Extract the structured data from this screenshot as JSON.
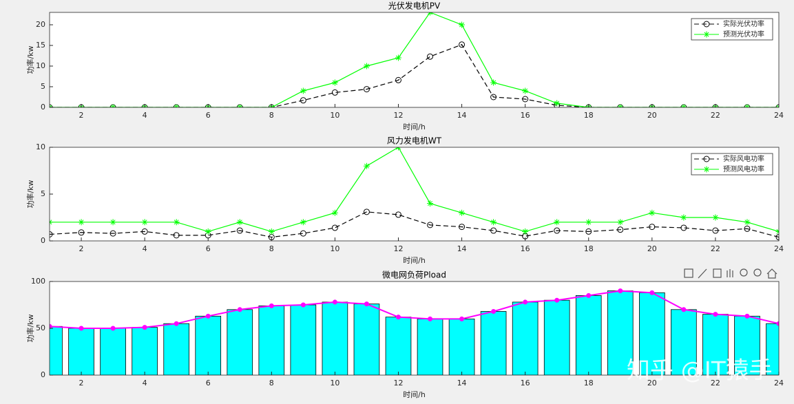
{
  "chart_data": [
    {
      "type": "line",
      "title": "光伏发电机PV",
      "xlabel": "时间/h",
      "ylabel": "功率/kw",
      "x": [
        1,
        2,
        3,
        4,
        5,
        6,
        7,
        8,
        9,
        10,
        11,
        12,
        13,
        14,
        15,
        16,
        17,
        18,
        19,
        20,
        21,
        22,
        23,
        24
      ],
      "series": [
        {
          "name": "实际光伏功率",
          "color": "#000000",
          "linestyle": "dashed",
          "marker": "o",
          "values": [
            0,
            0,
            0,
            0,
            0,
            0,
            0,
            0,
            1.7,
            3.6,
            4.4,
            6.6,
            12.3,
            15.2,
            2.5,
            2,
            0.5,
            0,
            0,
            0,
            0,
            0,
            0,
            0
          ]
        },
        {
          "name": "预测光伏功率",
          "color": "#00ff00",
          "linestyle": "solid",
          "marker": "*",
          "values": [
            0,
            0,
            0,
            0,
            0,
            0,
            0,
            0,
            4,
            6,
            10,
            12,
            23,
            20,
            6,
            4,
            1,
            0,
            0,
            0,
            0,
            0,
            0,
            0
          ]
        }
      ],
      "xlim": [
        1,
        24
      ],
      "xticks": [
        2,
        4,
        6,
        8,
        10,
        12,
        14,
        16,
        18,
        20,
        22,
        24
      ],
      "ylim": [
        0,
        23
      ],
      "yticks": [
        0,
        5,
        10,
        15,
        20
      ],
      "legend": "northeast"
    },
    {
      "type": "line",
      "title": "风力发电机WT",
      "xlabel": "时间/h",
      "ylabel": "功率/kw",
      "x": [
        1,
        2,
        3,
        4,
        5,
        6,
        7,
        8,
        9,
        10,
        11,
        12,
        13,
        14,
        15,
        16,
        17,
        18,
        19,
        20,
        21,
        22,
        23,
        24
      ],
      "series": [
        {
          "name": "实际风电功率",
          "color": "#000000",
          "linestyle": "dashed",
          "marker": "o",
          "values": [
            0.7,
            0.9,
            0.8,
            1.0,
            0.6,
            0.6,
            1.1,
            0.4,
            0.8,
            1.4,
            3.1,
            2.8,
            1.7,
            1.5,
            1.1,
            0.5,
            1.1,
            1.0,
            1.2,
            1.5,
            1.4,
            1.1,
            1.3,
            0.4
          ]
        },
        {
          "name": "预测风电功率",
          "color": "#00ff00",
          "linestyle": "solid",
          "marker": "*",
          "values": [
            2,
            2,
            2,
            2,
            2,
            1,
            2,
            1,
            2,
            3,
            8,
            10,
            4,
            3,
            2,
            1,
            2,
            2,
            2,
            3,
            2.5,
            2.5,
            2,
            1
          ]
        }
      ],
      "xlim": [
        1,
        24
      ],
      "xticks": [
        2,
        4,
        6,
        8,
        10,
        12,
        14,
        16,
        18,
        20,
        22,
        24
      ],
      "ylim": [
        0,
        10
      ],
      "yticks": [
        0,
        5,
        10
      ],
      "legend": "northeast"
    },
    {
      "type": "bar",
      "title": "微电网负荷Pload",
      "xlabel": "时间/h",
      "ylabel": "功率/kw",
      "x": [
        1,
        2,
        3,
        4,
        5,
        6,
        7,
        8,
        9,
        10,
        11,
        12,
        13,
        14,
        15,
        16,
        17,
        18,
        19,
        20,
        21,
        22,
        23,
        24
      ],
      "values": [
        52,
        50,
        50,
        51,
        55,
        63,
        70,
        74,
        75,
        78,
        76,
        62,
        60,
        60,
        68,
        78,
        80,
        85,
        90,
        88,
        70,
        65,
        63,
        55
      ],
      "color": "#00ffff",
      "line_color": "#ff00ff",
      "xlim": [
        1,
        24
      ],
      "xticks": [
        2,
        4,
        6,
        8,
        10,
        12,
        14,
        16,
        18,
        20,
        22,
        24
      ],
      "ylim": [
        0,
        100
      ],
      "yticks": [
        0,
        50,
        100
      ]
    }
  ],
  "watermark": "知乎 @IT猿手"
}
